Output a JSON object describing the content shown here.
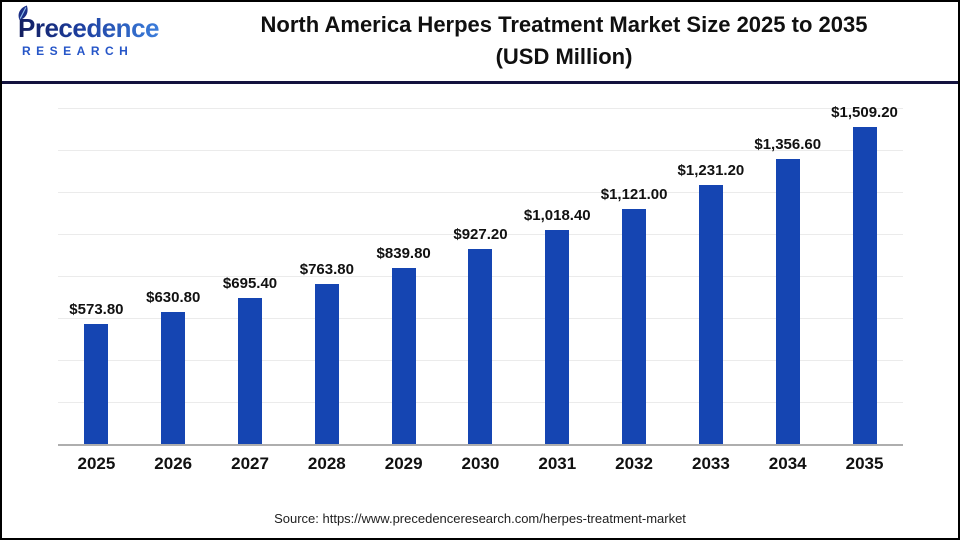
{
  "logo": {
    "name": "Precedence",
    "subname": "RESEARCH"
  },
  "header": {
    "title_line1": "North America Herpes Treatment Market Size 2025 to 2035",
    "title_line2": "(USD Million)"
  },
  "chart_data": {
    "type": "bar",
    "title": "North America Herpes Treatment Market Size 2025 to 2035 (USD Million)",
    "categories": [
      "2025",
      "2026",
      "2027",
      "2028",
      "2029",
      "2030",
      "2031",
      "2032",
      "2033",
      "2034",
      "2035"
    ],
    "values": [
      573.8,
      630.8,
      695.4,
      763.8,
      839.8,
      927.2,
      1018.4,
      1121.0,
      1231.2,
      1356.6,
      1509.2
    ],
    "value_labels": [
      "$573.80",
      "$630.80",
      "$695.40",
      "$763.80",
      "$839.80",
      "$927.20",
      "$1,018.40",
      "$1,121.00",
      "$1,231.20",
      "$1,356.60",
      "$1,509.20"
    ],
    "xlabel": "",
    "ylabel": "",
    "ylim": [
      0,
      1600
    ],
    "gridline_step": 200,
    "grid": true,
    "legend_position": "none",
    "bar_color": "#1545b2"
  },
  "footer": {
    "source": "Source: https://www.precedenceresearch.com/herpes-treatment-market"
  },
  "colors": {
    "bar": "#1545b2",
    "header_rule": "#13123e",
    "gridline": "#ebebeb",
    "axis_line": "#aeaeae",
    "logo_research": "#2656c8",
    "logo_gradient_start": "#121d5e",
    "logo_gradient_end": "#3b7ddb",
    "title_text": "#101010",
    "source_text": "#222222"
  }
}
